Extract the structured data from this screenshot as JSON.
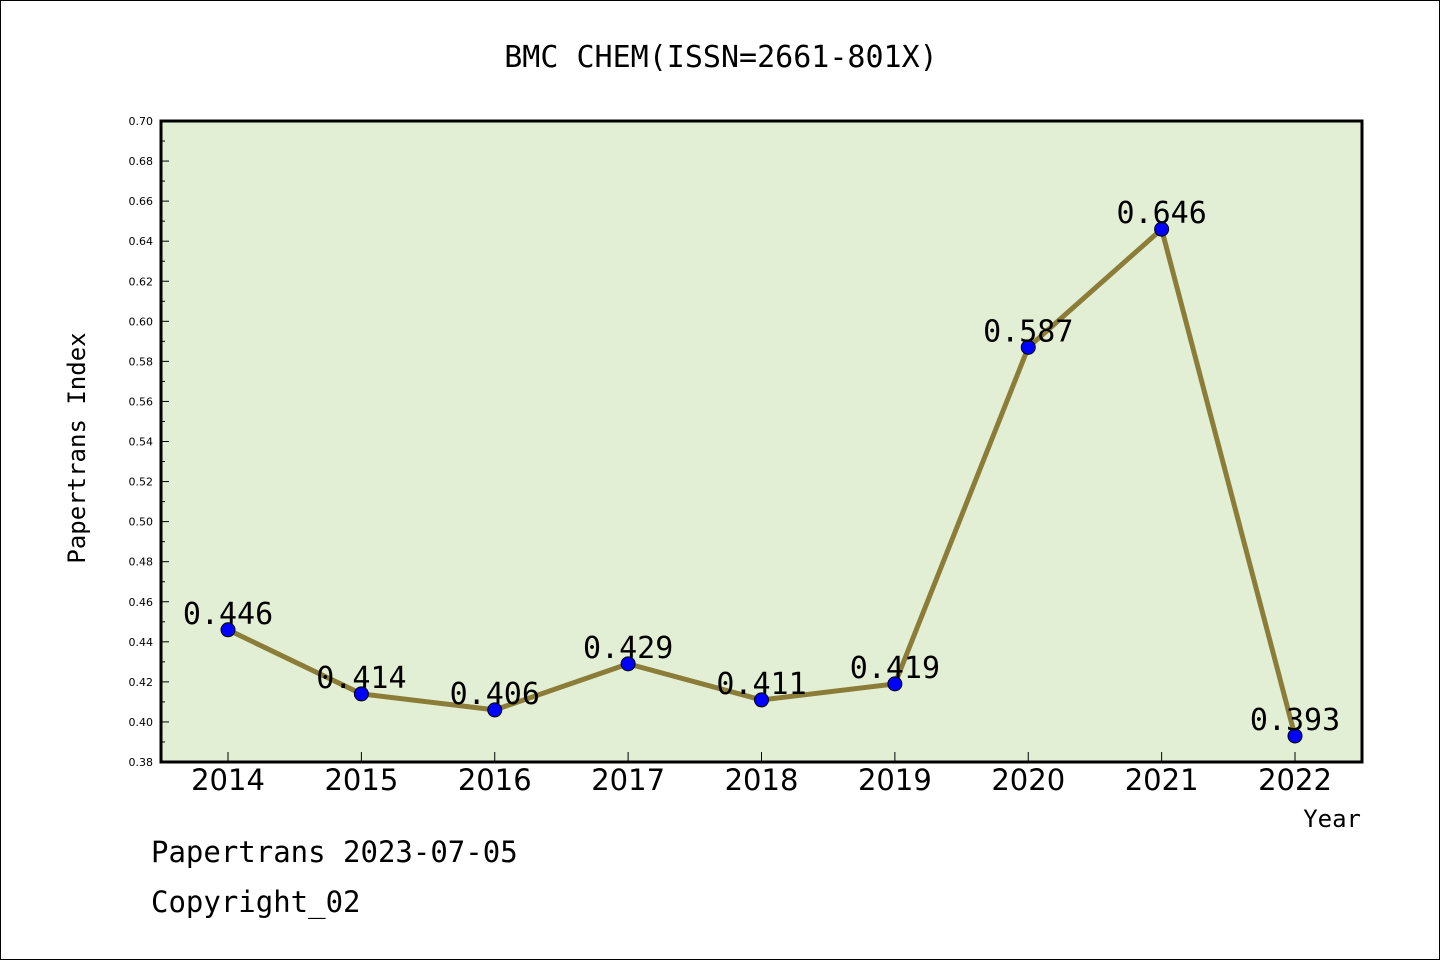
{
  "chart_data": {
    "type": "line",
    "title": "BMC CHEM(ISSN=2661-801X)",
    "xlabel": "Year",
    "ylabel": "Papertrans Index",
    "categories": [
      "2014",
      "2015",
      "2016",
      "2017",
      "2018",
      "2019",
      "2020",
      "2021",
      "2022"
    ],
    "values": [
      0.446,
      0.414,
      0.406,
      0.429,
      0.411,
      0.419,
      0.587,
      0.646,
      0.393
    ],
    "data_labels": [
      "0.446",
      "0.414",
      "0.406",
      "0.429",
      "0.411",
      "0.419",
      "0.587",
      "0.646",
      "0.393"
    ],
    "ylim": [
      0.38,
      0.7
    ],
    "yticks": [
      "0.38",
      "0.40",
      "0.42",
      "0.44",
      "0.46",
      "0.48",
      "0.50",
      "0.52",
      "0.54",
      "0.56",
      "0.58",
      "0.60",
      "0.62",
      "0.64",
      "0.66",
      "0.68",
      "0.70"
    ],
    "grid": false,
    "colors": {
      "plot_background": "#e2efd5",
      "line": "#8b7d38",
      "marker": "#0000ff"
    }
  },
  "footer": {
    "line1": "Papertrans 2023-07-05",
    "line2": "Copyright_02"
  }
}
